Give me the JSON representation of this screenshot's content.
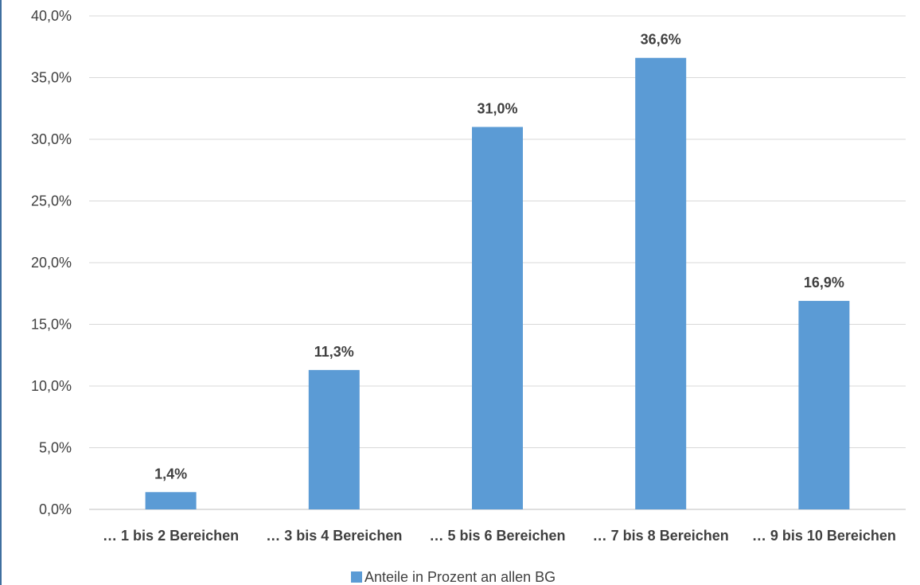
{
  "chart_data": {
    "type": "bar",
    "categories": [
      "… 1 bis 2 Bereichen",
      "… 3 bis 4 Bereichen",
      "… 5 bis 6 Bereichen",
      "… 7 bis 8 Bereichen",
      "… 9 bis 10 Bereichen"
    ],
    "series": [
      {
        "name": "Anteile in Prozent an allen BG",
        "values": [
          1.4,
          11.3,
          31.0,
          36.6,
          16.9
        ],
        "value_labels": [
          "1,4%",
          "11,3%",
          "31,0%",
          "36,6%",
          "16,9%"
        ],
        "color": "#5b9bd5"
      }
    ],
    "ylim": [
      0,
      40
    ],
    "yticks": [
      0,
      5,
      10,
      15,
      20,
      25,
      30,
      35,
      40
    ],
    "ytick_labels": [
      "0,0%",
      "5,0%",
      "10,0%",
      "15,0%",
      "20,0%",
      "25,0%",
      "30,0%",
      "35,0%",
      "40,0%"
    ],
    "grid": true,
    "legend_position": "bottom"
  }
}
